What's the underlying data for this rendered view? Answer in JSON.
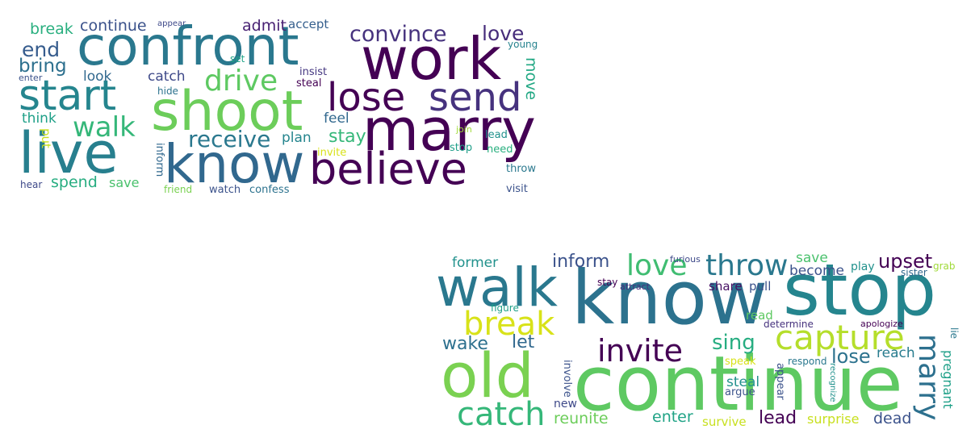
{
  "clouds": [
    {
      "words": [
        {
          "text": "confront",
          "color": "#2a788e"
        },
        {
          "text": "work",
          "color": "#440154"
        },
        {
          "text": "shoot",
          "color": "#6ccd5a"
        },
        {
          "text": "marry",
          "color": "#440154"
        },
        {
          "text": "live",
          "color": "#277f8e"
        },
        {
          "text": "know",
          "color": "#31688e"
        },
        {
          "text": "believe",
          "color": "#440154"
        },
        {
          "text": "start",
          "color": "#25858e"
        },
        {
          "text": "lose",
          "color": "#440154"
        },
        {
          "text": "send",
          "color": "#46327e"
        },
        {
          "text": "convince",
          "color": "#46327e"
        },
        {
          "text": "love",
          "color": "#472d7b"
        },
        {
          "text": "drive",
          "color": "#5ec962"
        },
        {
          "text": "walk",
          "color": "#35b779"
        },
        {
          "text": "receive",
          "color": "#2a788e"
        },
        {
          "text": "continue",
          "color": "#3b528b"
        },
        {
          "text": "break",
          "color": "#29af7f"
        },
        {
          "text": "end",
          "color": "#365c8d"
        },
        {
          "text": "bring",
          "color": "#2d708e"
        },
        {
          "text": "admit",
          "color": "#482173"
        },
        {
          "text": "accept",
          "color": "#355f8d"
        },
        {
          "text": "appear",
          "color": "#3e4989"
        },
        {
          "text": "look",
          "color": "#31688e"
        },
        {
          "text": "catch",
          "color": "#3e4989"
        },
        {
          "text": "move",
          "color": "#22a884"
        },
        {
          "text": "young",
          "color": "#26828e"
        },
        {
          "text": "insist",
          "color": "#453781"
        },
        {
          "text": "steal",
          "color": "#440154"
        },
        {
          "text": "set",
          "color": "#20a386"
        },
        {
          "text": "enter",
          "color": "#3b528b"
        },
        {
          "text": "hide",
          "color": "#2c728e"
        },
        {
          "text": "think",
          "color": "#1fa088"
        },
        {
          "text": "put",
          "color": "#c8e020"
        },
        {
          "text": "feel",
          "color": "#31688e"
        },
        {
          "text": "stay",
          "color": "#35b779"
        },
        {
          "text": "plan",
          "color": "#25858e"
        },
        {
          "text": "invite",
          "color": "#d8e219"
        },
        {
          "text": "join",
          "color": "#a0da39"
        },
        {
          "text": "lead",
          "color": "#21918c"
        },
        {
          "text": "stop",
          "color": "#1f9e89"
        },
        {
          "text": "need",
          "color": "#29af7f"
        },
        {
          "text": "throw",
          "color": "#2a788e"
        },
        {
          "text": "visit",
          "color": "#3b528b"
        },
        {
          "text": "inform",
          "color": "#31688e"
        },
        {
          "text": "spend",
          "color": "#27ad81"
        },
        {
          "text": "save",
          "color": "#4ac16d"
        },
        {
          "text": "hear",
          "color": "#3e4989"
        },
        {
          "text": "friend",
          "color": "#7ad151"
        },
        {
          "text": "watch",
          "color": "#3b528b"
        },
        {
          "text": "confess",
          "color": "#2c728e"
        }
      ]
    },
    {
      "words": [
        {
          "text": "know",
          "color": "#2c728e"
        },
        {
          "text": "stop",
          "color": "#25858e"
        },
        {
          "text": "walk",
          "color": "#2a788e"
        },
        {
          "text": "continue",
          "color": "#5ec962"
        },
        {
          "text": "old",
          "color": "#7ad151"
        },
        {
          "text": "break",
          "color": "#d8e219"
        },
        {
          "text": "capture",
          "color": "#b5de2b"
        },
        {
          "text": "invite",
          "color": "#440154"
        },
        {
          "text": "catch",
          "color": "#35b779"
        },
        {
          "text": "marry",
          "color": "#2d708e"
        },
        {
          "text": "love",
          "color": "#40bd72"
        },
        {
          "text": "throw",
          "color": "#2a788e"
        },
        {
          "text": "inform",
          "color": "#3b528b"
        },
        {
          "text": "upset",
          "color": "#440154"
        },
        {
          "text": "former",
          "color": "#21918c"
        },
        {
          "text": "wake",
          "color": "#2d708e"
        },
        {
          "text": "let",
          "color": "#31688e"
        },
        {
          "text": "sing",
          "color": "#27ad81"
        },
        {
          "text": "lose",
          "color": "#2c728e"
        },
        {
          "text": "reach",
          "color": "#287c8e"
        },
        {
          "text": "pregnant",
          "color": "#1fa088"
        },
        {
          "text": "lie",
          "color": "#2a788e"
        },
        {
          "text": "save",
          "color": "#4ac16d"
        },
        {
          "text": "become",
          "color": "#3b528b"
        },
        {
          "text": "play",
          "color": "#21918c"
        },
        {
          "text": "sister",
          "color": "#31688e"
        },
        {
          "text": "grab",
          "color": "#a0da39"
        },
        {
          "text": "furious",
          "color": "#3e4989"
        },
        {
          "text": "stay",
          "color": "#440154"
        },
        {
          "text": "attract",
          "color": "#472d7b"
        },
        {
          "text": "share",
          "color": "#471063"
        },
        {
          "text": "pull",
          "color": "#3b528b"
        },
        {
          "text": "figure",
          "color": "#1fa088"
        },
        {
          "text": "read",
          "color": "#5ec962"
        },
        {
          "text": "determine",
          "color": "#46327e"
        },
        {
          "text": "apologize",
          "color": "#440154"
        },
        {
          "text": "involve",
          "color": "#3b528b"
        },
        {
          "text": "speak",
          "color": "#d8e219"
        },
        {
          "text": "respond",
          "color": "#2a788e"
        },
        {
          "text": "appear",
          "color": "#3b528b"
        },
        {
          "text": "recognize",
          "color": "#21918c"
        },
        {
          "text": "steal",
          "color": "#21918c"
        },
        {
          "text": "argue",
          "color": "#3b528b"
        },
        {
          "text": "new",
          "color": "#3e4989"
        },
        {
          "text": "reunite",
          "color": "#6ccd5a"
        },
        {
          "text": "enter",
          "color": "#20a386"
        },
        {
          "text": "survive",
          "color": "#c8e020"
        },
        {
          "text": "lead",
          "color": "#440154"
        },
        {
          "text": "surprise",
          "color": "#c8e020"
        },
        {
          "text": "dead",
          "color": "#3b528b"
        }
      ]
    }
  ]
}
